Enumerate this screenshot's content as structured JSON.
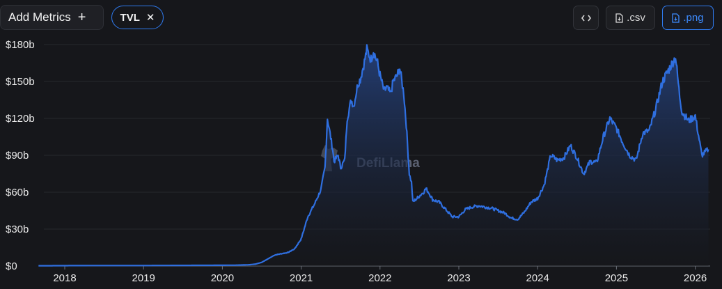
{
  "toolbar": {
    "add_metrics_label": "Add Metrics",
    "add_icon": "plus-icon",
    "chip_label": "TVL",
    "chip_remove_icon": "close-icon",
    "embed_icon": "code-icon",
    "csv_label": ".csv",
    "png_label": ".png",
    "accent_color": "#2f7bf0"
  },
  "watermark": {
    "text": "DefiLlama",
    "icon": "llama-logo-icon"
  },
  "chart_data": {
    "type": "area",
    "title": "",
    "xlabel": "",
    "ylabel": "",
    "x_ticks": [
      "2018",
      "2019",
      "2020",
      "2021",
      "2022",
      "2023",
      "2024",
      "2025",
      "2026"
    ],
    "y_ticks": [
      "$0",
      "$30b",
      "$60b",
      "$90b",
      "$120b",
      "$150b",
      "$180b"
    ],
    "y_unit": "billion USD",
    "ylim": [
      0,
      180
    ],
    "xlim": [
      "2017-09",
      "2026-03"
    ],
    "grid": true,
    "legend": "none",
    "line_color": "#2f6fe0",
    "series": [
      {
        "name": "TVL",
        "points": [
          [
            "2017-09",
            0.2
          ],
          [
            "2018-01",
            0.3
          ],
          [
            "2018-06",
            0.4
          ],
          [
            "2019-01",
            0.4
          ],
          [
            "2019-06",
            0.5
          ],
          [
            "2019-12",
            0.6
          ],
          [
            "2020-03",
            0.7
          ],
          [
            "2020-05",
            1.0
          ],
          [
            "2020-06",
            1.5
          ],
          [
            "2020-07",
            3
          ],
          [
            "2020-08",
            6
          ],
          [
            "2020-09",
            9
          ],
          [
            "2020-10",
            10
          ],
          [
            "2020-11",
            11
          ],
          [
            "2020-12",
            14
          ],
          [
            "2021-01",
            22
          ],
          [
            "2021-02",
            40
          ],
          [
            "2021-03",
            50
          ],
          [
            "2021-04",
            62
          ],
          [
            "2021-04-20",
            80
          ],
          [
            "2021-05",
            120
          ],
          [
            "2021-05-25",
            95
          ],
          [
            "2021-06",
            85
          ],
          [
            "2021-06-20",
            90
          ],
          [
            "2021-07",
            80
          ],
          [
            "2021-07-20",
            86
          ],
          [
            "2021-08",
            120
          ],
          [
            "2021-08-20",
            135
          ],
          [
            "2021-09",
            130
          ],
          [
            "2021-09-20",
            148
          ],
          [
            "2021-10",
            152
          ],
          [
            "2021-10-20",
            166
          ],
          [
            "2021-11",
            176
          ],
          [
            "2021-11-20",
            168
          ],
          [
            "2021-12",
            175
          ],
          [
            "2021-12-20",
            165
          ],
          [
            "2022-01",
            155
          ],
          [
            "2022-01-20",
            142
          ],
          [
            "2022-02",
            145
          ],
          [
            "2022-02-20",
            140
          ],
          [
            "2022-03",
            150
          ],
          [
            "2022-03-20",
            155
          ],
          [
            "2022-04",
            161
          ],
          [
            "2022-04-20",
            140
          ],
          [
            "2022-05",
            115
          ],
          [
            "2022-05-15",
            75
          ],
          [
            "2022-05-25",
            68
          ],
          [
            "2022-06",
            52
          ],
          [
            "2022-06-20",
            55
          ],
          [
            "2022-07",
            57
          ],
          [
            "2022-07-20",
            60
          ],
          [
            "2022-08",
            63
          ],
          [
            "2022-08-20",
            58
          ],
          [
            "2022-09",
            54
          ],
          [
            "2022-10",
            52
          ],
          [
            "2022-11",
            46
          ],
          [
            "2022-12",
            40
          ],
          [
            "2023-01",
            40
          ],
          [
            "2023-02",
            46
          ],
          [
            "2023-03",
            48
          ],
          [
            "2023-04",
            49
          ],
          [
            "2023-05",
            48
          ],
          [
            "2023-06",
            47
          ],
          [
            "2023-07",
            45
          ],
          [
            "2023-08",
            43
          ],
          [
            "2023-09",
            39
          ],
          [
            "2023-10",
            38
          ],
          [
            "2023-11",
            44
          ],
          [
            "2023-12",
            52
          ],
          [
            "2024-01",
            55
          ],
          [
            "2024-02",
            66
          ],
          [
            "2024-03",
            90
          ],
          [
            "2024-04",
            86
          ],
          [
            "2024-05",
            88
          ],
          [
            "2024-06",
            98
          ],
          [
            "2024-07",
            88
          ],
          [
            "2024-08",
            75
          ],
          [
            "2024-09",
            85
          ],
          [
            "2024-10",
            84
          ],
          [
            "2024-11",
            105
          ],
          [
            "2024-12",
            120
          ],
          [
            "2025-01",
            112
          ],
          [
            "2025-02",
            100
          ],
          [
            "2025-03",
            90
          ],
          [
            "2025-04",
            86
          ],
          [
            "2025-05",
            108
          ],
          [
            "2025-06",
            110
          ],
          [
            "2025-07",
            128
          ],
          [
            "2025-08",
            150
          ],
          [
            "2025-09",
            160
          ],
          [
            "2025-10",
            170
          ],
          [
            "2025-10-20",
            138
          ],
          [
            "2025-11",
            125
          ],
          [
            "2025-12",
            118
          ],
          [
            "2026-01",
            122
          ],
          [
            "2026-02",
            90
          ],
          [
            "2026-03",
            95
          ]
        ]
      }
    ]
  }
}
